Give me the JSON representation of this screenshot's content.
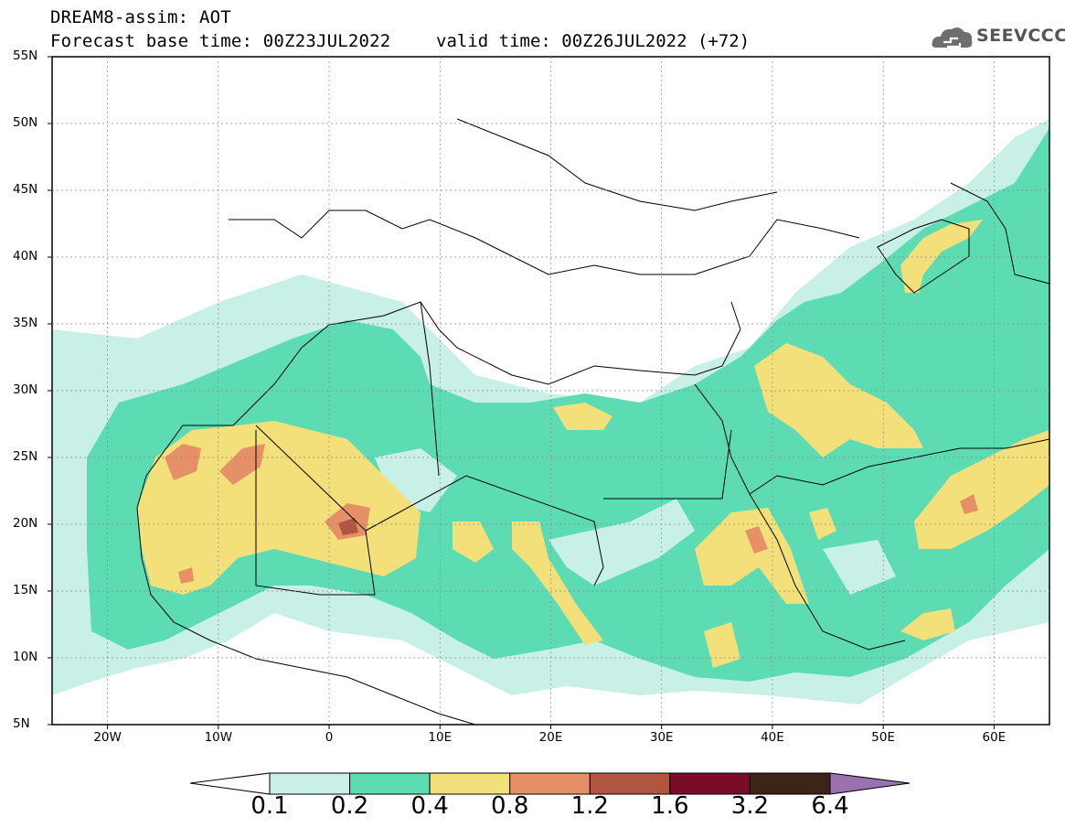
{
  "header": {
    "title": "DREAM8-assim: AOT",
    "base_time": "Forecast base time: 00Z23JUL2022",
    "valid_time": "valid time: 00Z26JUL2022 (+72)"
  },
  "logo": {
    "text": "SEEVCCC",
    "icon": "cloud-icon"
  },
  "map": {
    "lat_labels": [
      "55N",
      "50N",
      "45N",
      "40N",
      "35N",
      "30N",
      "25N",
      "20N",
      "15N",
      "10N",
      "5N"
    ],
    "lon_labels": [
      "20W",
      "10W",
      "0",
      "10E",
      "20E",
      "30E",
      "40E",
      "50E",
      "60E"
    ],
    "lat_range": [
      5,
      55
    ],
    "lon_range": [
      -25,
      65
    ],
    "grid": true
  },
  "colorbar": {
    "labels": [
      "0.1",
      "0.2",
      "0.4",
      "0.8",
      "1.2",
      "1.6",
      "3.2",
      "6.4"
    ],
    "colors": [
      "#c8f0e6",
      "#5ddcb4",
      "#f3e07a",
      "#e69068",
      "#b05540",
      "#7a0c2a",
      "#3c2418"
    ],
    "under_color": "#ffffff",
    "over_color": "#9b72b0"
  }
}
